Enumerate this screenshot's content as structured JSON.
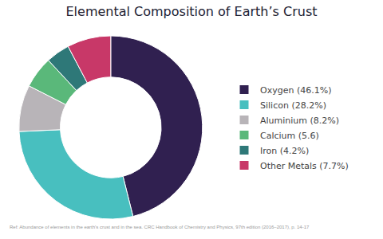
{
  "chart_data": {
    "type": "pie",
    "title": "Elemental Composition of Earth’s Crust",
    "categories": [
      "Oxygen (46.1%)",
      "Silicon (28.2%)",
      "Aluminium (8.2%)",
      "Calcium (5.6)",
      "Iron (4.2%)",
      "Other Metals (7.7%)"
    ],
    "values": [
      46.1,
      28.2,
      8.2,
      5.6,
      4.2,
      7.7
    ],
    "colors": [
      "#302050",
      "#48bfbf",
      "#b8b4b8",
      "#5ab87a",
      "#2e7878",
      "#c83868"
    ],
    "legend": "right",
    "annotations": [
      "Ref: Abundance of elements in the earth's crust and in the sea. CRC Handbook of Chemistry and Physics, 97th edition (2016–2017), p. 14-17"
    ]
  }
}
